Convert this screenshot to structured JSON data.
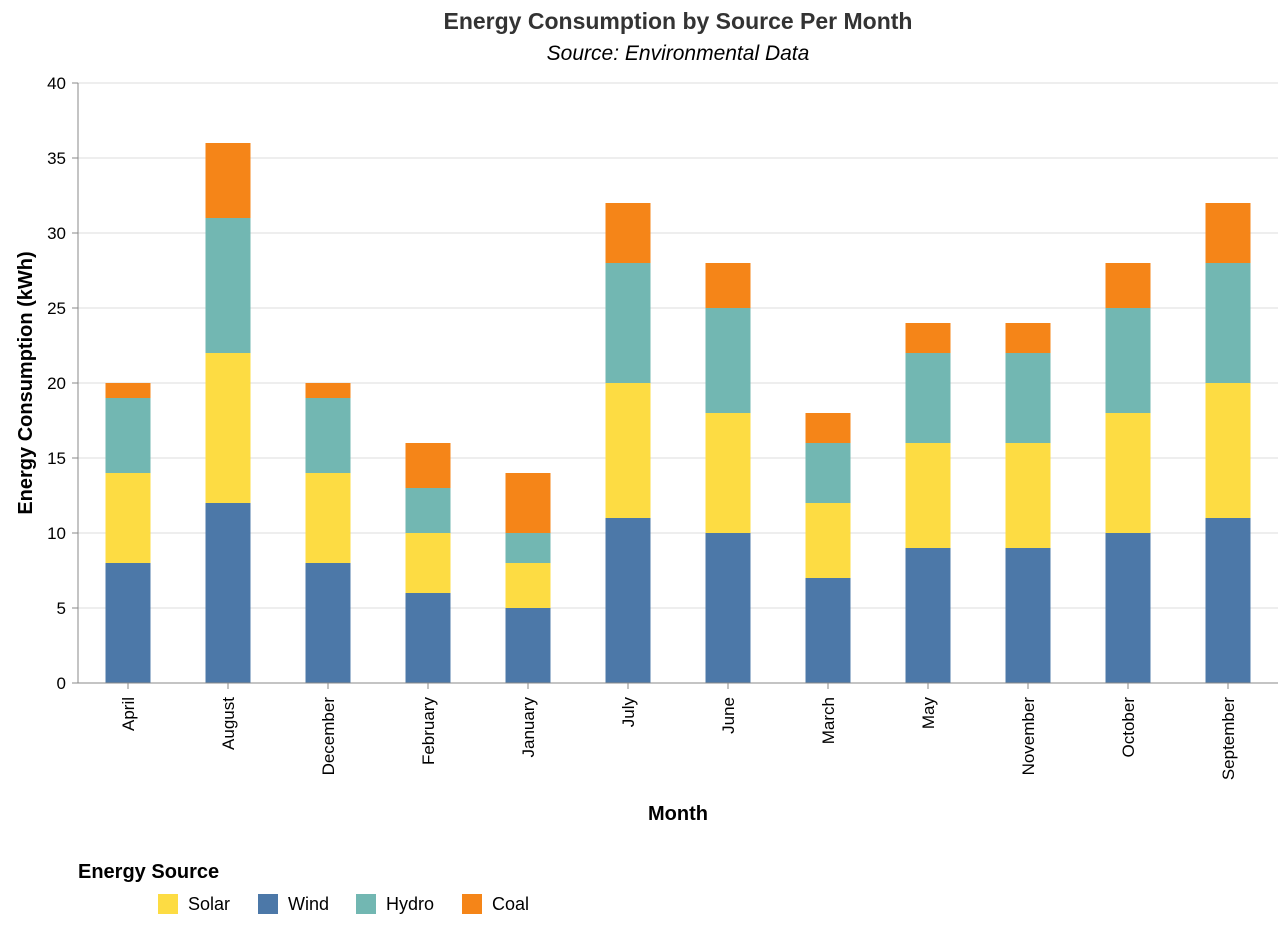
{
  "chart_data": {
    "type": "bar",
    "stacked": true,
    "title": "Energy Consumption by Source Per Month",
    "subtitle": "Source: Environmental Data",
    "xlabel": "Month",
    "ylabel": "Energy Consumption (kWh)",
    "ylim": [
      0,
      40
    ],
    "yticks": [
      0,
      5,
      10,
      15,
      20,
      25,
      30,
      35,
      40
    ],
    "grid": true,
    "categories": [
      "April",
      "August",
      "December",
      "February",
      "January",
      "July",
      "June",
      "March",
      "May",
      "November",
      "October",
      "September"
    ],
    "series": [
      {
        "name": "Wind",
        "color": "#4c78a8",
        "values": [
          8,
          12,
          8,
          6,
          5,
          11,
          10,
          7,
          9,
          9,
          10,
          11
        ]
      },
      {
        "name": "Solar",
        "color": "#fddc43",
        "values": [
          6,
          10,
          6,
          4,
          3,
          9,
          8,
          5,
          7,
          7,
          8,
          9
        ]
      },
      {
        "name": "Hydro",
        "color": "#72b7b2",
        "values": [
          5,
          9,
          5,
          3,
          2,
          8,
          7,
          4,
          6,
          6,
          7,
          8
        ]
      },
      {
        "name": "Coal",
        "color": "#f58518",
        "values": [
          1,
          5,
          1,
          3,
          4,
          4,
          3,
          2,
          2,
          2,
          3,
          4
        ]
      }
    ],
    "legend": {
      "title": "Energy Source",
      "position": "bottom-left",
      "order": [
        "Solar",
        "Wind",
        "Hydro",
        "Coal"
      ]
    }
  }
}
